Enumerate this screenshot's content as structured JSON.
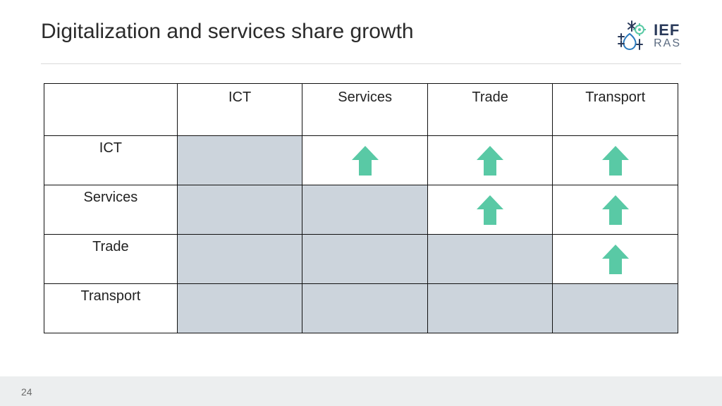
{
  "title": "Digitalization and services share growth",
  "logo": {
    "line1": "IEF",
    "line2": "RAS"
  },
  "page_number": "24",
  "arrow_color": "#59c9a5",
  "shaded_color": "#ccd4dc",
  "border_color": "#111111",
  "table": {
    "columns": [
      "ICT",
      "Services",
      "Trade",
      "Transport"
    ],
    "rows": [
      "ICT",
      "Services",
      "Trade",
      "Transport"
    ],
    "cells": [
      [
        "shaded",
        "arrow",
        "arrow",
        "arrow"
      ],
      [
        "shaded",
        "shaded",
        "arrow",
        "arrow"
      ],
      [
        "shaded",
        "shaded",
        "shaded",
        "arrow"
      ],
      [
        "shaded",
        "shaded",
        "shaded",
        "shaded"
      ]
    ]
  }
}
